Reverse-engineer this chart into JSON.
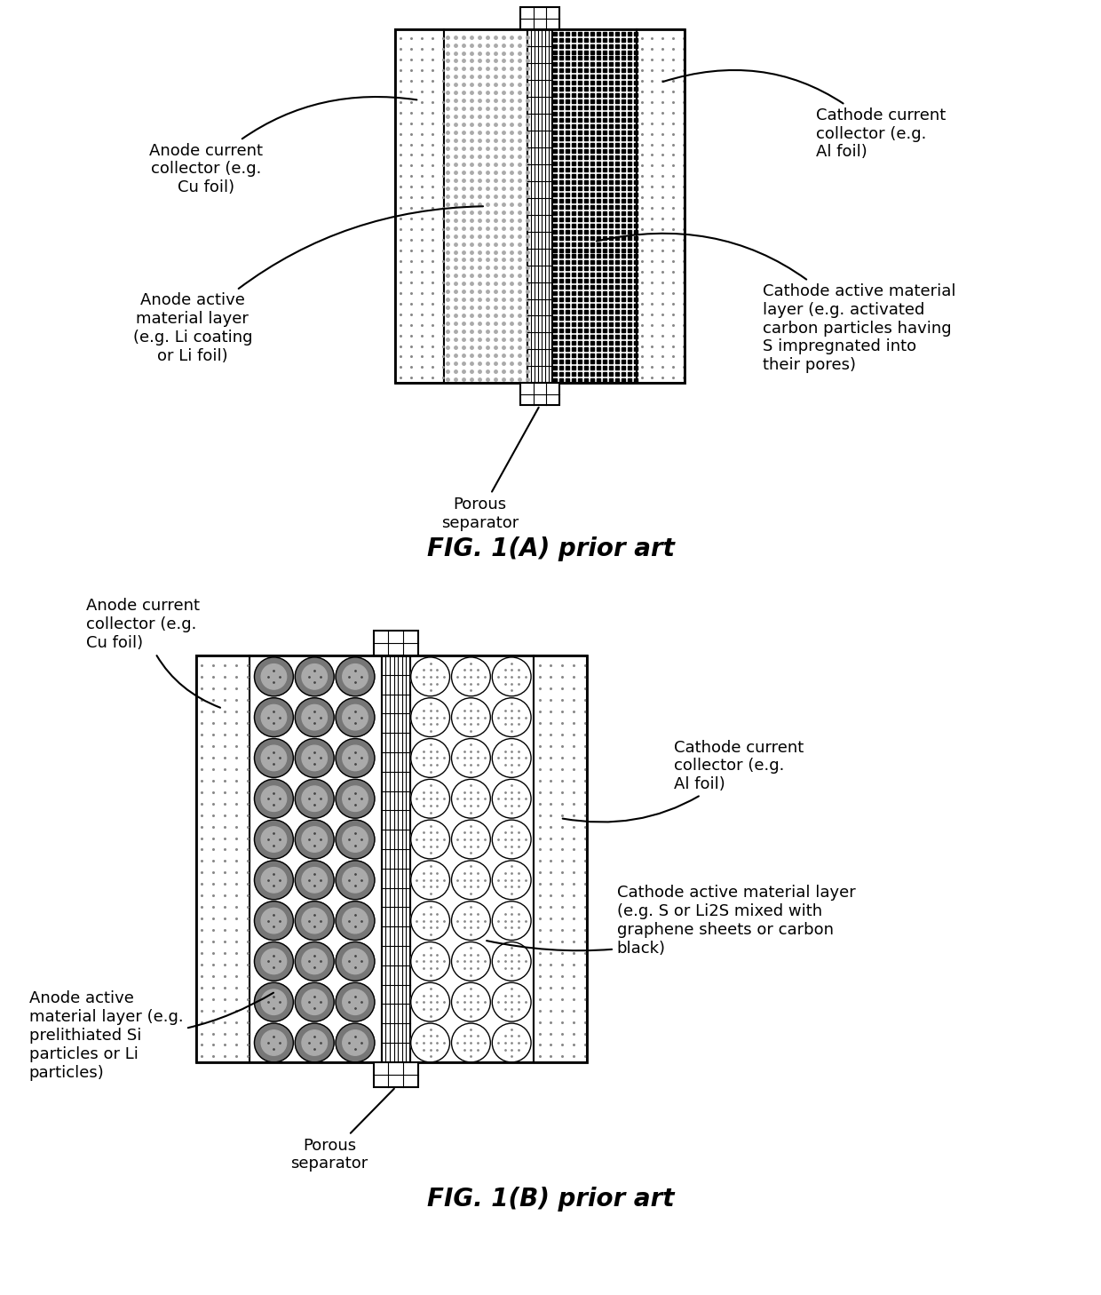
{
  "fig_A_title": "FIG. 1(A) prior art",
  "fig_B_title": "FIG. 1(B) prior art",
  "bg_color": "#ffffff",
  "labels_A": {
    "anode_current_collector": "Anode current\ncollector (e.g.\nCu foil)",
    "anode_active_material": "Anode active\nmaterial layer\n(e.g. Li coating\nor Li foil)",
    "porous_separator": "Porous\nseparator",
    "cathode_current_collector": "Cathode current\ncollector (e.g.\nAl foil)",
    "cathode_active_material": "Cathode active material\nlayer (e.g. activated\ncarbon particles having\nS impregnated into\ntheir pores)"
  },
  "labels_B": {
    "anode_current_collector": "Anode current\ncollector (e.g.\nCu foil)",
    "anode_active_material": "Anode active\nmaterial layer (e.g.\nprelithiated Si\nparticles or Li\nparticles)",
    "porous_separator": "Porous\nseparator",
    "cathode_current_collector": "Cathode current\ncollector (e.g.\nAl foil)",
    "cathode_active_material": "Cathode active material layer\n(e.g. S or Li2S mixed with\ngraphene sheets or carbon\nblack)"
  },
  "fontsize": 13,
  "title_fontsize": 20
}
